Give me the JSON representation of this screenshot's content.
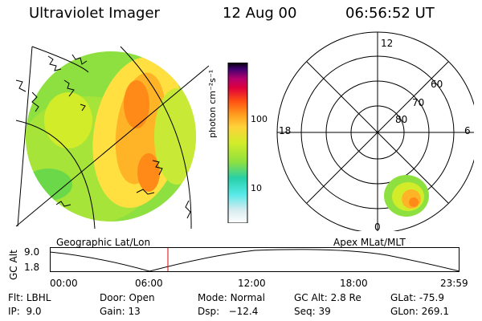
{
  "header": {
    "instrument": "Ultraviolet Imager",
    "date": "12 Aug 00",
    "time": "06:56:52 UT"
  },
  "panels": {
    "left_label": "Geographic Lat/Lon",
    "right_label": "Apex MLat/MLT"
  },
  "colorbar": {
    "unit_label": "photon cm⁻²s⁻¹",
    "ticks": [
      "100",
      "10"
    ]
  },
  "polar": {
    "mlt_labels": {
      "top": "12",
      "left": "18",
      "right": "6",
      "bottom": "0"
    },
    "lat_labels": [
      "60",
      "70",
      "80"
    ]
  },
  "altitude": {
    "axis_label": "GC Alt",
    "y_ticks": [
      "9.0",
      "1.8"
    ],
    "x_ticks": [
      "00:00",
      "06:00",
      "12:00",
      "18:00",
      "23:59"
    ]
  },
  "info": {
    "row1": [
      {
        "label": "Flt:",
        "value": "LBHL"
      },
      {
        "label": "Door:",
        "value": "Open"
      },
      {
        "label": "Mode:",
        "value": "Normal"
      },
      {
        "label": "GC Alt:",
        "value": "2.8 Re"
      },
      {
        "label": "GLat:",
        "value": "-75.9"
      }
    ],
    "row2": [
      {
        "label": "IP:",
        "value": "9.0"
      },
      {
        "label": "Gain:",
        "value": "13"
      },
      {
        "label": "Dsp:",
        "value": "−12.4"
      },
      {
        "label": "Seq:",
        "value": "39"
      },
      {
        "label": "GLon:",
        "value": "269.1"
      }
    ]
  },
  "colors": {
    "scale": [
      "#ffffff",
      "#d8ecf0",
      "#57e8e8",
      "#27d0a8",
      "#8ee040",
      "#d2ec2a",
      "#ffd23a",
      "#ff9a1e",
      "#ff5012",
      "#e0003a",
      "#b4006e",
      "#400070",
      "#000000"
    ],
    "time_marker": "#dd0000"
  }
}
